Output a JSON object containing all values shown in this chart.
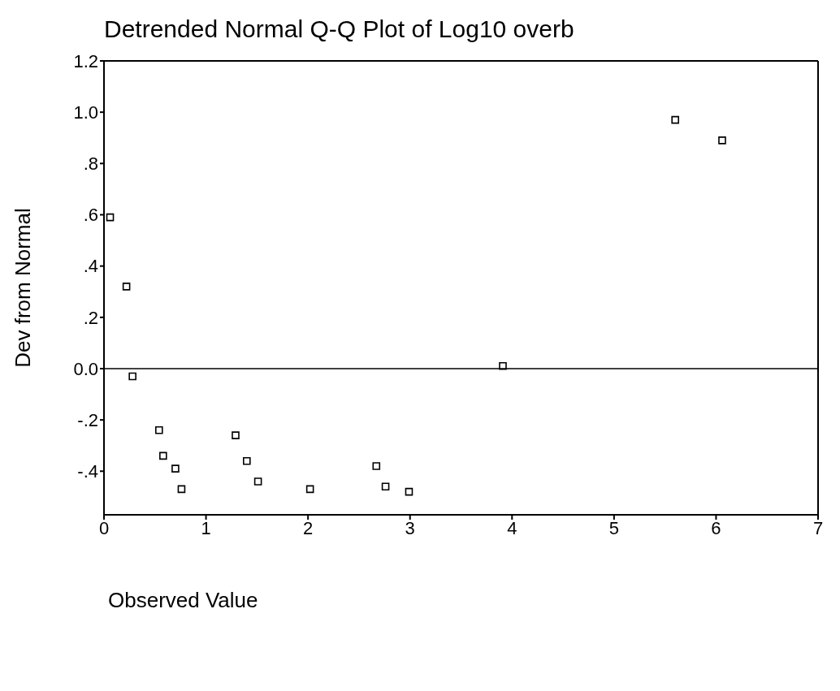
{
  "chart_data": {
    "type": "scatter",
    "title": "Detrended Normal Q-Q Plot of Log10 overb",
    "xlabel": "Observed Value",
    "ylabel": "Dev from Normal",
    "x": [
      0.06,
      0.22,
      0.28,
      0.54,
      0.58,
      0.7,
      0.76,
      1.29,
      1.4,
      1.51,
      2.02,
      2.67,
      2.76,
      2.99,
      3.91,
      5.6,
      6.06
    ],
    "values": [
      0.59,
      0.32,
      -0.03,
      -0.24,
      -0.34,
      -0.39,
      -0.47,
      -0.26,
      -0.36,
      -0.44,
      -0.47,
      -0.38,
      -0.46,
      -0.48,
      0.01,
      0.97,
      0.89
    ],
    "color": "#000000",
    "marker": "square",
    "grid": false,
    "legend": false,
    "xlim": [
      0,
      7
    ],
    "xticks": [
      0,
      1,
      2,
      3,
      4,
      5,
      6,
      7
    ],
    "ylim": [
      -0.57,
      1.2
    ],
    "yticks": [
      {
        "value": -0.4,
        "label": "-.4"
      },
      {
        "value": -0.2,
        "label": "-.2"
      },
      {
        "value": 0,
        "label": "0.0"
      },
      {
        "value": 0.2,
        "label": ".2"
      },
      {
        "value": 0.4,
        "label": ".4"
      },
      {
        "value": 0.6,
        "label": ".6"
      },
      {
        "value": 0.8,
        "label": ".8"
      },
      {
        "value": 1,
        "label": "1.0"
      },
      1.2
    ],
    "ref_lines": [
      {
        "axis": "y",
        "value": 0,
        "color": "#000000"
      }
    ]
  }
}
